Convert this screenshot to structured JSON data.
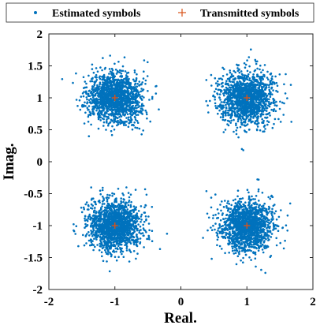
{
  "chart_data": {
    "type": "scatter",
    "title": "",
    "xlabel": "Real.",
    "ylabel": "Imag.",
    "xlim": [
      -2,
      2
    ],
    "ylim": [
      -2,
      2
    ],
    "xticks": [
      "-2",
      "-1",
      "0",
      "1",
      "2"
    ],
    "yticks": [
      "2",
      "1.5",
      "1",
      "0.5",
      "0",
      "-0.5",
      "-1",
      "-1.5",
      "-2"
    ],
    "grid": false,
    "legend_position": "top",
    "series": [
      {
        "name": "Estimated symbols",
        "marker": "dot",
        "color": "#0072BD",
        "clusters": [
          {
            "center": [
              -1,
              1
            ],
            "spread_std": 0.2,
            "count": 1500
          },
          {
            "center": [
              1,
              1
            ],
            "spread_std": 0.2,
            "count": 1500
          },
          {
            "center": [
              -1,
              -1
            ],
            "spread_std": 0.2,
            "count": 1500
          },
          {
            "center": [
              1,
              -1
            ],
            "spread_std": 0.2,
            "count": 1500
          }
        ]
      },
      {
        "name": "Transmitted symbols",
        "marker": "plus",
        "color": "#D95319",
        "points": [
          [
            -1,
            1
          ],
          [
            1,
            1
          ],
          [
            -1,
            -1
          ],
          [
            1,
            -1
          ]
        ]
      }
    ]
  }
}
